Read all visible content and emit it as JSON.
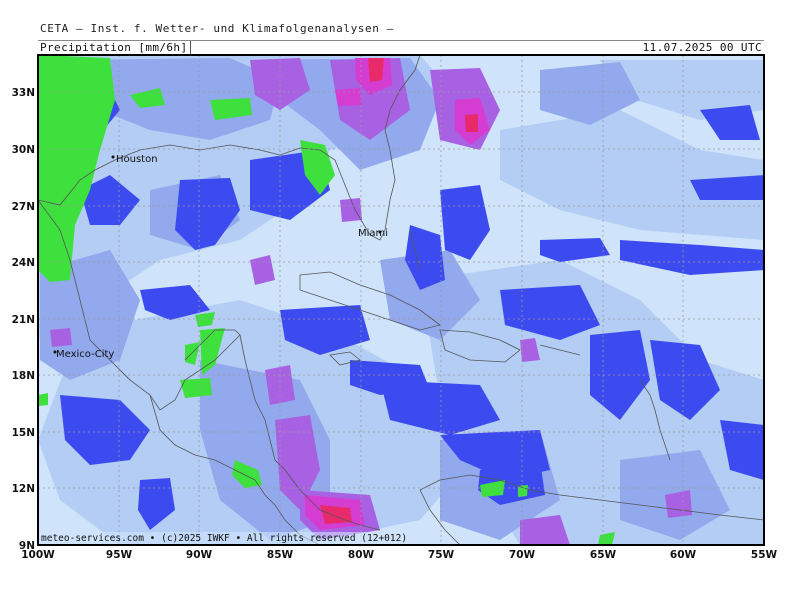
{
  "header": {
    "title": "CETA — Inst. f. Wetter- und Klimafolgenanalysen —",
    "product": "Precipitation [mm/6h]",
    "valid_time": "11.07.2025 00 UTC"
  },
  "map": {
    "lat_labels": [
      "33N",
      "30N",
      "27N",
      "24N",
      "21N",
      "18N",
      "15N",
      "12N",
      "9N"
    ],
    "lon_labels": [
      "100W",
      "95W",
      "90W",
      "85W",
      "80W",
      "75W",
      "70W",
      "65W",
      "60W",
      "55W"
    ],
    "cities": [
      {
        "name": "Houston"
      },
      {
        "name": "Miami"
      },
      {
        "name": "Mexico-City"
      }
    ],
    "credit": "meteo-services.com • (c)2025 IWKF • All rights reserved (12+012)"
  },
  "colors": {
    "background": "#cfe4fb",
    "light": "#b3cdf4",
    "medium": "#93a9ee",
    "heavy": "#3c4bf0",
    "violet": "#a861e2",
    "magenta": "#d43cd2",
    "red": "#e82a6a",
    "green": "#3ee03e",
    "frame": "#000000",
    "grid": "#9a9a9a",
    "coast": "#555555"
  }
}
